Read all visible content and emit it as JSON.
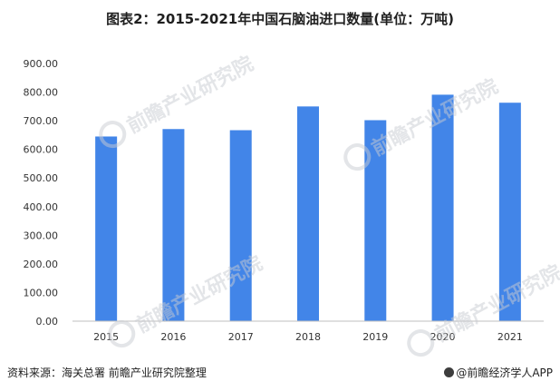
{
  "title": "图表2：2015-2021年中国石脑油进口数量(单位：万吨)",
  "source": "资料来源：海关总署 前瞻产业研究院整理",
  "brand": "@前瞻经济学人APP",
  "watermark": "前瞻产业研究院",
  "colors": {
    "bar": "#4285e8",
    "axis": "#bfbfbf",
    "tick_text": "#333333"
  },
  "chart_data": {
    "type": "bar",
    "title": "图表2：2015-2021年中国石脑油进口数量(单位：万吨)",
    "categories": [
      "2015",
      "2016",
      "2017",
      "2018",
      "2019",
      "2020",
      "2021"
    ],
    "values": [
      645,
      671,
      667,
      750,
      702,
      791,
      763
    ],
    "ylim": [
      0,
      900
    ],
    "yticks": [
      "0.00",
      "100.00",
      "200.00",
      "300.00",
      "400.00",
      "500.00",
      "600.00",
      "700.00",
      "800.00",
      "900.00"
    ],
    "xlabel": "",
    "ylabel": "",
    "grid": false,
    "legend": "none"
  }
}
